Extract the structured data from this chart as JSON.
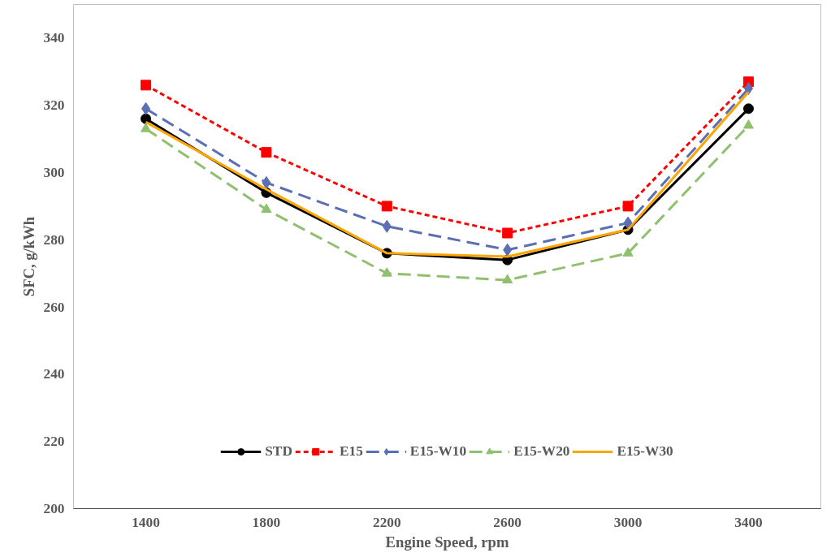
{
  "chart_data": {
    "type": "line",
    "xlabel": "Engine Speed, rpm",
    "ylabel": "SFC, g/kWh",
    "categories": [
      "1400",
      "1800",
      "2200",
      "2600",
      "3000",
      "3400"
    ],
    "ylim": [
      200,
      350
    ],
    "yticks": [
      200,
      220,
      240,
      260,
      280,
      300,
      320,
      340
    ],
    "grid": false,
    "legend": "bottom",
    "series": [
      {
        "name": "STD",
        "color": "#000000",
        "marker": "circle",
        "line_style": "solid",
        "values": [
          316,
          294,
          276,
          274,
          283,
          319
        ]
      },
      {
        "name": "E15",
        "color": "#ff0000",
        "marker": "square",
        "line_style": "dotted",
        "values": [
          326,
          306,
          290,
          282,
          290,
          327
        ]
      },
      {
        "name": "E15-W10",
        "color": "#5b6fb5",
        "marker": "diamond",
        "line_style": "dashed",
        "values": [
          319,
          297,
          284,
          277,
          285,
          325
        ]
      },
      {
        "name": "E15-W20",
        "color": "#8fc06e",
        "marker": "triangle",
        "line_style": "dashed",
        "values": [
          313,
          289,
          270,
          268,
          276,
          314
        ]
      },
      {
        "name": "E15-W30",
        "color": "#ffa500",
        "marker": "none",
        "line_style": "solid",
        "values": [
          315,
          295,
          276,
          275,
          283,
          324
        ]
      }
    ]
  }
}
